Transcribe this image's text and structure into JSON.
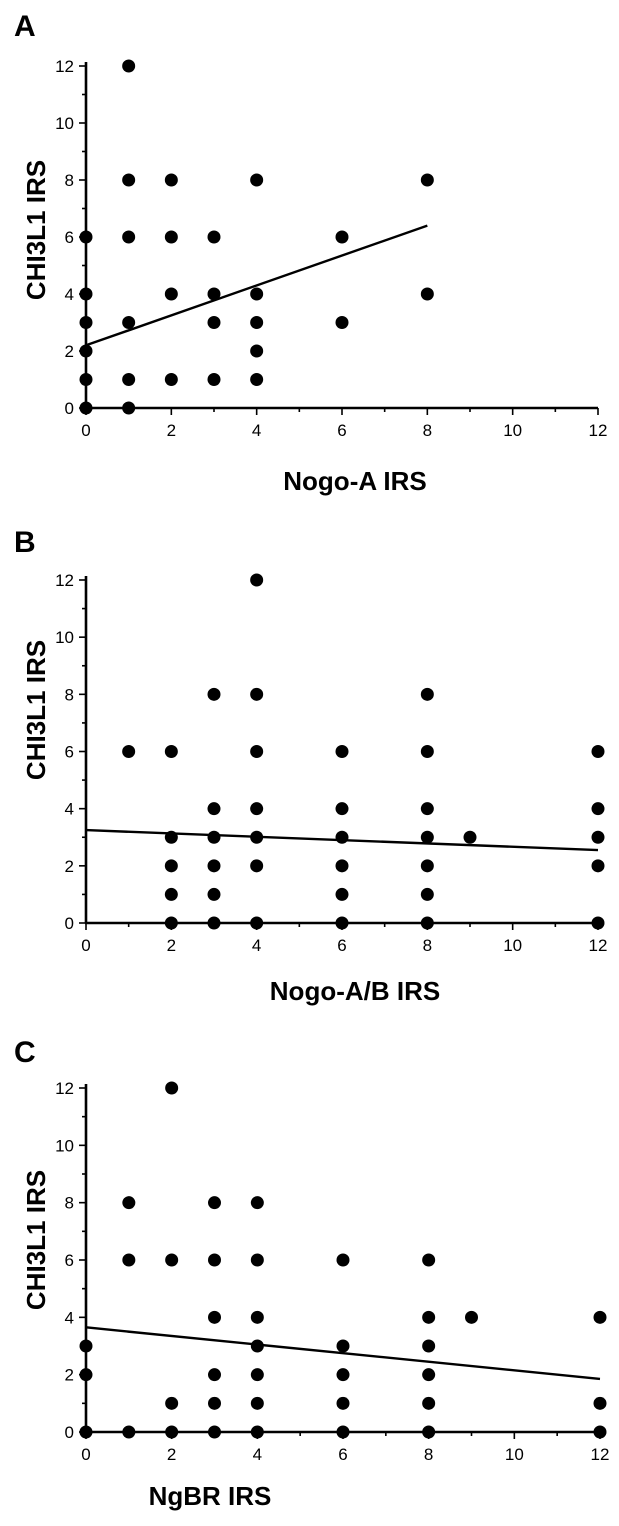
{
  "chart_data": [
    {
      "type": "scatter",
      "panel": "A",
      "xlabel": "Nogo-A IRS",
      "ylabel": "CHI3L1 IRS",
      "xlim": [
        0,
        12
      ],
      "ylim": [
        0,
        12
      ],
      "x_ticks": [
        "0",
        "2",
        "4",
        "6",
        "8",
        "10",
        "12"
      ],
      "y_ticks": [
        "0",
        "2",
        "4",
        "6",
        "8",
        "10",
        "12"
      ],
      "points": [
        [
          0,
          0
        ],
        [
          0,
          1
        ],
        [
          0,
          2
        ],
        [
          0,
          3
        ],
        [
          0,
          4
        ],
        [
          0,
          6
        ],
        [
          1,
          0
        ],
        [
          1,
          1
        ],
        [
          1,
          3
        ],
        [
          1,
          6
        ],
        [
          1,
          8
        ],
        [
          1,
          12
        ],
        [
          2,
          1
        ],
        [
          2,
          4
        ],
        [
          2,
          6
        ],
        [
          2,
          8
        ],
        [
          3,
          1
        ],
        [
          3,
          3
        ],
        [
          3,
          4
        ],
        [
          3,
          6
        ],
        [
          4,
          1
        ],
        [
          4,
          2
        ],
        [
          4,
          3
        ],
        [
          4,
          4
        ],
        [
          4,
          8
        ],
        [
          6,
          3
        ],
        [
          6,
          6
        ],
        [
          8,
          4
        ],
        [
          8,
          8
        ]
      ],
      "regression": {
        "x": [
          0,
          8
        ],
        "y": [
          2.2,
          6.4
        ]
      },
      "colors": {
        "marker": "#000000",
        "line": "#000000"
      }
    },
    {
      "type": "scatter",
      "panel": "B",
      "xlabel": "Nogo-A/B IRS",
      "ylabel": "CHI3L1 IRS",
      "xlim": [
        0,
        12
      ],
      "ylim": [
        0,
        12
      ],
      "x_ticks": [
        "0",
        "2",
        "4",
        "6",
        "8",
        "10",
        "12"
      ],
      "y_ticks": [
        "0",
        "2",
        "4",
        "6",
        "8",
        "10",
        "12"
      ],
      "points": [
        [
          1,
          6
        ],
        [
          2,
          0
        ],
        [
          2,
          1
        ],
        [
          2,
          2
        ],
        [
          2,
          3
        ],
        [
          2,
          6
        ],
        [
          3,
          0
        ],
        [
          3,
          1
        ],
        [
          3,
          2
        ],
        [
          3,
          3
        ],
        [
          3,
          4
        ],
        [
          3,
          8
        ],
        [
          4,
          0
        ],
        [
          4,
          2
        ],
        [
          4,
          3
        ],
        [
          4,
          4
        ],
        [
          4,
          6
        ],
        [
          4,
          8
        ],
        [
          4,
          12
        ],
        [
          6,
          0
        ],
        [
          6,
          1
        ],
        [
          6,
          2
        ],
        [
          6,
          3
        ],
        [
          6,
          4
        ],
        [
          6,
          6
        ],
        [
          8,
          0
        ],
        [
          8,
          1
        ],
        [
          8,
          2
        ],
        [
          8,
          3
        ],
        [
          8,
          4
        ],
        [
          8,
          6
        ],
        [
          8,
          8
        ],
        [
          9,
          3
        ],
        [
          12,
          0
        ],
        [
          12,
          2
        ],
        [
          12,
          3
        ],
        [
          12,
          4
        ],
        [
          12,
          6
        ]
      ],
      "regression": {
        "x": [
          0,
          12
        ],
        "y": [
          3.25,
          2.55
        ]
      },
      "colors": {
        "marker": "#000000",
        "line": "#000000"
      }
    },
    {
      "type": "scatter",
      "panel": "C",
      "xlabel": "NgBR IRS",
      "ylabel": "CHI3L1 IRS",
      "xlim": [
        0,
        12
      ],
      "ylim": [
        0,
        12
      ],
      "x_ticks": [
        "0",
        "2",
        "4",
        "6",
        "8",
        "10",
        "12"
      ],
      "y_ticks": [
        "0",
        "2",
        "4",
        "6",
        "8",
        "10",
        "12"
      ],
      "points": [
        [
          0,
          0
        ],
        [
          0,
          2
        ],
        [
          0,
          3
        ],
        [
          1,
          0
        ],
        [
          1,
          6
        ],
        [
          1,
          8
        ],
        [
          2,
          0
        ],
        [
          2,
          1
        ],
        [
          2,
          6
        ],
        [
          2,
          12
        ],
        [
          3,
          0
        ],
        [
          3,
          1
        ],
        [
          3,
          2
        ],
        [
          3,
          4
        ],
        [
          3,
          6
        ],
        [
          3,
          8
        ],
        [
          4,
          0
        ],
        [
          4,
          1
        ],
        [
          4,
          2
        ],
        [
          4,
          3
        ],
        [
          4,
          4
        ],
        [
          4,
          6
        ],
        [
          4,
          8
        ],
        [
          6,
          0
        ],
        [
          6,
          1
        ],
        [
          6,
          2
        ],
        [
          6,
          3
        ],
        [
          6,
          6
        ],
        [
          8,
          0
        ],
        [
          8,
          1
        ],
        [
          8,
          2
        ],
        [
          8,
          3
        ],
        [
          8,
          4
        ],
        [
          8,
          6
        ],
        [
          9,
          4
        ],
        [
          12,
          0
        ],
        [
          12,
          1
        ],
        [
          12,
          4
        ]
      ],
      "regression": {
        "x": [
          0,
          12
        ],
        "y": [
          3.65,
          1.85
        ]
      },
      "colors": {
        "marker": "#000000",
        "line": "#000000"
      }
    }
  ]
}
